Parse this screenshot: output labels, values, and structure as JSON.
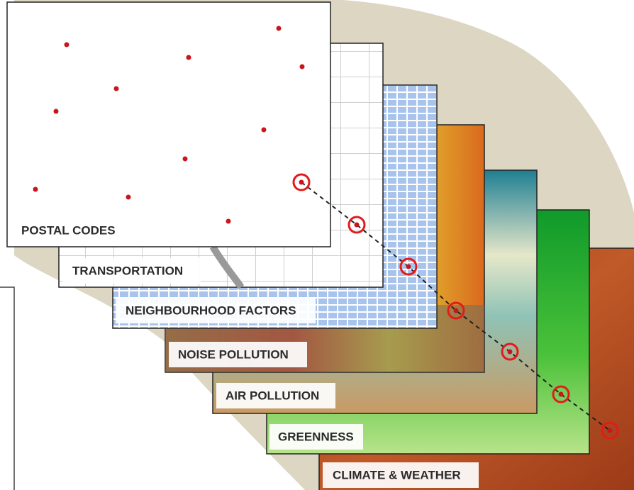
{
  "layers": [
    {
      "label": "POSTAL CODES"
    },
    {
      "label": "TRANSPORTATION"
    },
    {
      "label": "NEIGHBOURHOOD FACTORS"
    },
    {
      "label": "NOISE POLLUTION"
    },
    {
      "label": "AIR POLLUTION"
    },
    {
      "label": "GREENNESS"
    },
    {
      "label": "CLIMATE & WEATHER"
    }
  ]
}
